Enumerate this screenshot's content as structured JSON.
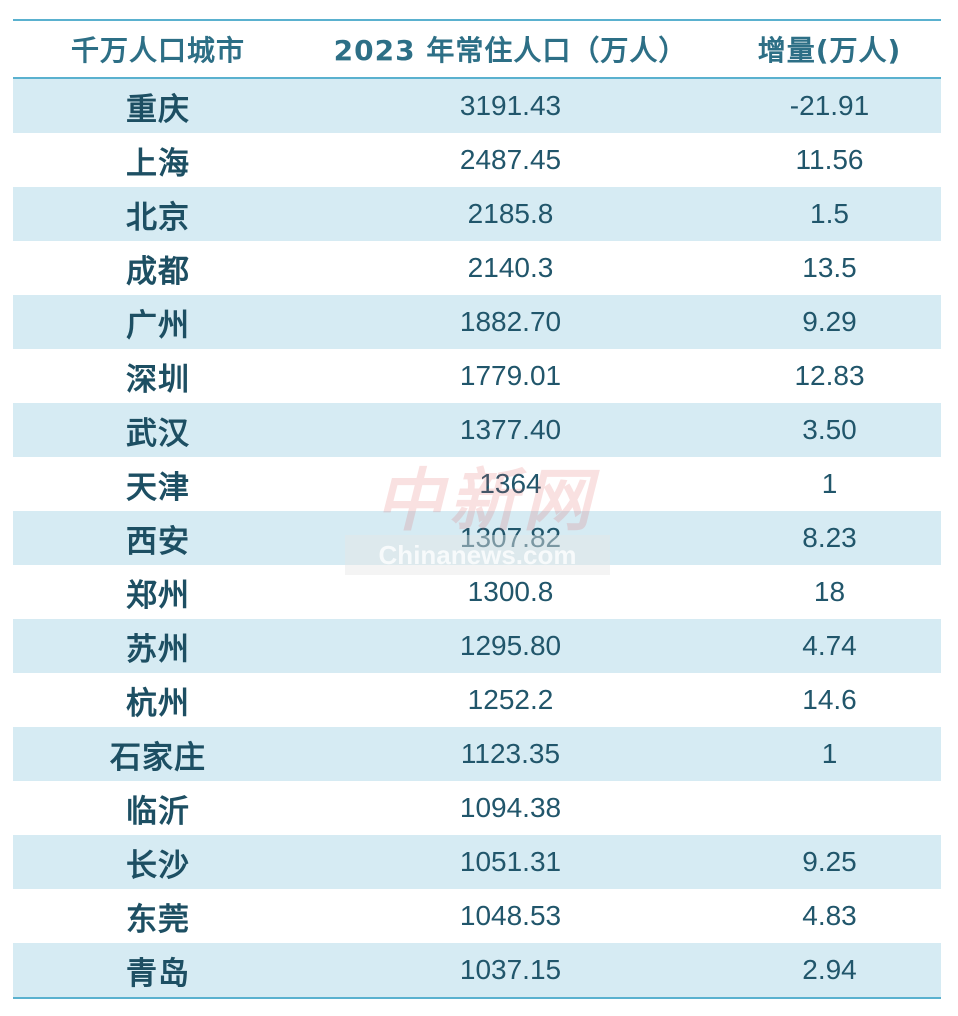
{
  "table": {
    "headers": {
      "city": "千万人口城市",
      "population": "2023 年常住人口（万人）",
      "increase": "增量(万人)"
    },
    "rows": [
      {
        "city": "重庆",
        "population": "3191.43",
        "increase": "-21.91"
      },
      {
        "city": "上海",
        "population": "2487.45",
        "increase": "11.56"
      },
      {
        "city": "北京",
        "population": "2185.8",
        "increase": "1.5"
      },
      {
        "city": "成都",
        "population": "2140.3",
        "increase": "13.5"
      },
      {
        "city": "广州",
        "population": "1882.70",
        "increase": "9.29"
      },
      {
        "city": "深圳",
        "population": "1779.01",
        "increase": "12.83"
      },
      {
        "city": "武汉",
        "population": "1377.40",
        "increase": "3.50"
      },
      {
        "city": "天津",
        "population": "1364",
        "increase": "1"
      },
      {
        "city": "西安",
        "population": "1307.82",
        "increase": "8.23"
      },
      {
        "city": "郑州",
        "population": "1300.8",
        "increase": "18"
      },
      {
        "city": "苏州",
        "population": "1295.80",
        "increase": "4.74"
      },
      {
        "city": "杭州",
        "population": "1252.2",
        "increase": "14.6"
      },
      {
        "city": "石家庄",
        "population": "1123.35",
        "increase": "1"
      },
      {
        "city": "临沂",
        "population": "1094.38",
        "increase": ""
      },
      {
        "city": "长沙",
        "population": "1051.31",
        "increase": "9.25"
      },
      {
        "city": "东莞",
        "population": "1048.53",
        "increase": "4.83"
      },
      {
        "city": "青岛",
        "population": "1037.15",
        "increase": "2.94"
      }
    ]
  },
  "watermark": {
    "chinese": "中新网",
    "english": "Chinanews.com"
  },
  "colors": {
    "accent_rule": "#5ab1cf",
    "row_shade": "#d6ebf3",
    "header_text": "#2d6f86",
    "body_text": "#1d4f63"
  }
}
